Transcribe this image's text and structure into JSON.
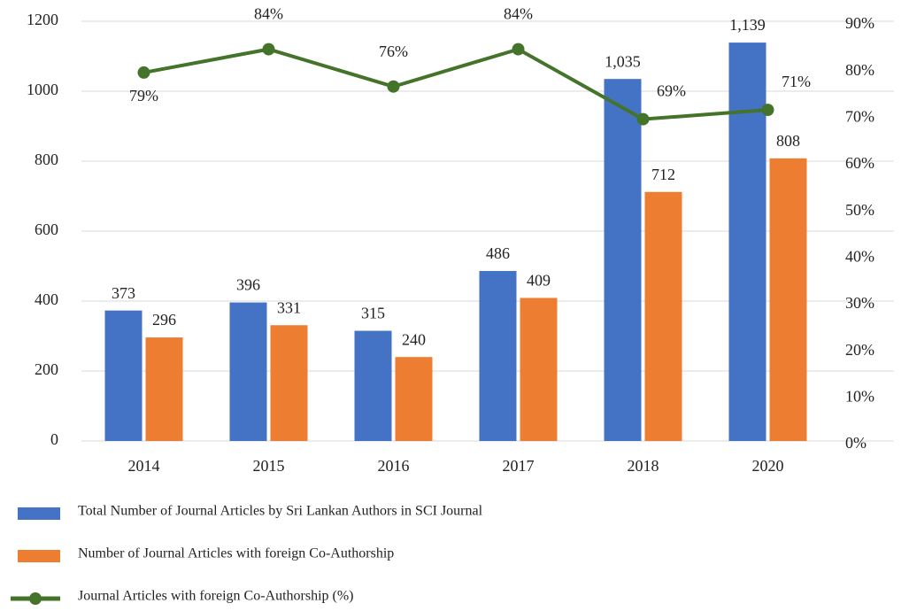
{
  "chart_data": {
    "type": "bar-line",
    "categories": [
      "2014",
      "2015",
      "2016",
      "2017",
      "2018",
      "2020"
    ],
    "series": [
      {
        "name": "Total Number of Journal Articles by Sri Lankan Authors in SCI Journal",
        "type": "bar",
        "color": "#4472c4",
        "values": [
          373,
          396,
          315,
          486,
          1035,
          1139
        ],
        "value_labels": [
          "373",
          "396",
          "315",
          "486",
          "1,035",
          "1,139"
        ]
      },
      {
        "name": "Number of Journal Articles with foreign Co-Authorship",
        "type": "bar",
        "color": "#ed7d31",
        "values": [
          296,
          331,
          240,
          409,
          712,
          808
        ]
      },
      {
        "name": "Journal Articles with foreign Co-Authorship (%)",
        "type": "line",
        "axis": "y2",
        "color": "#44732a",
        "values": [
          79,
          84,
          76,
          84,
          69,
          71
        ],
        "value_labels": [
          "79%",
          "84%",
          "76%",
          "84%",
          "69%",
          "71%"
        ]
      }
    ],
    "ylim": [
      0,
      1200
    ],
    "yticks": [
      0,
      200,
      400,
      600,
      800,
      1000,
      1200
    ],
    "y2lim": [
      0,
      90
    ],
    "y2ticks": [
      {
        "value": 0,
        "label": "0%"
      },
      {
        "value": 10,
        "label": "10%"
      },
      {
        "value": 20,
        "label": "20%"
      },
      {
        "value": 30,
        "label": "30%"
      },
      {
        "value": 40,
        "label": "40%"
      },
      {
        "value": 50,
        "label": "50%"
      },
      {
        "value": 60,
        "label": "60%"
      },
      {
        "value": 70,
        "label": "70%"
      },
      {
        "value": 80,
        "label": "80%"
      },
      {
        "value": 90,
        "label": "90%"
      }
    ],
    "grid": true,
    "legend": "bottom"
  }
}
